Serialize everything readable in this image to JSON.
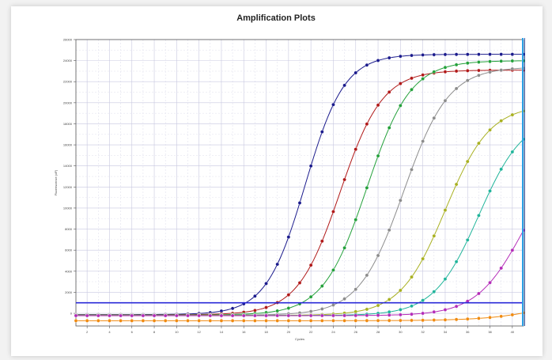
{
  "chart_data": {
    "type": "line",
    "title": "Amplification Plots",
    "xlabel": "Cycles",
    "ylabel": "Fluorescence (dF)",
    "xlim": [
      1,
      41
    ],
    "ylim": [
      -1200,
      26000
    ],
    "grid": true,
    "x_ticks": [
      "2",
      "4",
      "6",
      "8",
      "10",
      "12",
      "14",
      "16",
      "18",
      "20",
      "22",
      "24",
      "26",
      "28",
      "30",
      "32",
      "34",
      "36",
      "38",
      "40"
    ],
    "y_ticks": [
      "0",
      "2000",
      "4000",
      "6000",
      "8000",
      "10000",
      "12000",
      "14000",
      "16000",
      "18000",
      "20000",
      "22000",
      "24000",
      "26000"
    ],
    "threshold": 1000,
    "series": [
      {
        "color": "#1a1a8c",
        "params": {
          "base": -120,
          "plateau": 24600,
          "mid": 21.5,
          "slope": 1.75
        }
      },
      {
        "color": "#b01818",
        "params": {
          "base": -140,
          "plateau": 23100,
          "mid": 24.6,
          "slope": 1.9
        }
      },
      {
        "color": "#23a03a",
        "params": {
          "base": -160,
          "plateau": 24000,
          "mid": 27.0,
          "slope": 1.95
        }
      },
      {
        "color": "#8c8c8c",
        "params": {
          "base": -180,
          "plateau": 23400,
          "mid": 30.3,
          "slope": 2.0
        }
      },
      {
        "color": "#a8b020",
        "params": {
          "base": -200,
          "plateau": 19800,
          "mid": 34.0,
          "slope": 2.0
        }
      },
      {
        "color": "#20b49a",
        "params": {
          "base": -210,
          "plateau": 18800,
          "mid": 37.0,
          "slope": 2.0
        }
      },
      {
        "color": "#b42cb8",
        "params": {
          "base": -220,
          "plateau": 16000,
          "mid": 41.0,
          "slope": 2.1
        }
      },
      {
        "color": "#f08a10",
        "params": {
          "base": -700,
          "plateau": 4000,
          "mid": 46.0,
          "slope": 3.0
        }
      }
    ]
  }
}
